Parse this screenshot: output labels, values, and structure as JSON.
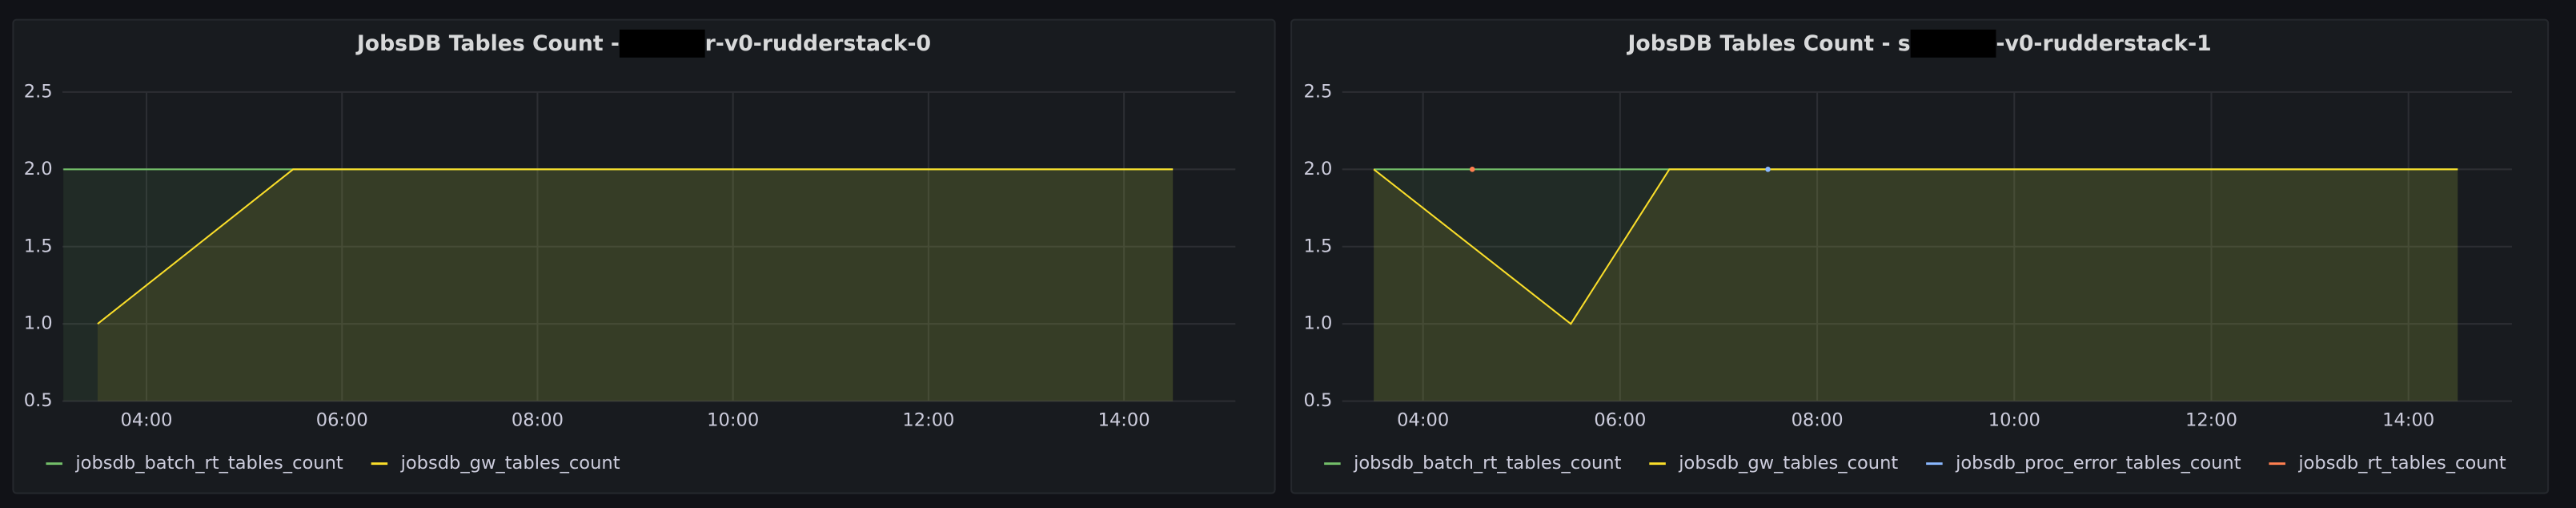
{
  "chart_data": [
    {
      "type": "line",
      "title": "JobsDB Tables Count - ",
      "title_suffix": "r-v0-rudderstack-0",
      "x": [
        3.15,
        3.5,
        4.5,
        5.5,
        6.5,
        7.5,
        8.5,
        9.5,
        10.5,
        11.5,
        12.5,
        13.5,
        14.5
      ],
      "xlim": [
        3.14,
        15.14
      ],
      "xticks": [
        {
          "value": 4,
          "label": "04:00"
        },
        {
          "value": 6,
          "label": "06:00"
        },
        {
          "value": 8,
          "label": "08:00"
        },
        {
          "value": 10,
          "label": "10:00"
        },
        {
          "value": 12,
          "label": "12:00"
        },
        {
          "value": 14,
          "label": "14:00"
        }
      ],
      "ylim": [
        0.5,
        2.5
      ],
      "yticks": [
        0.5,
        {
          "value": 1,
          "label": "1.0"
        },
        1.5,
        {
          "value": 2,
          "label": "2.0"
        },
        2.5
      ],
      "grid": true,
      "series": [
        {
          "name": "jobsdb_batch_rt_tables_count",
          "color": "#73bf69",
          "values": [
            2,
            2,
            2,
            2,
            2,
            2,
            2,
            2,
            2,
            2,
            2,
            2,
            2
          ]
        },
        {
          "name": "jobsdb_gw_tables_count",
          "color": "#fade2a",
          "values": [
            null,
            1,
            1.5,
            2,
            2,
            2,
            2,
            2,
            2,
            2,
            2,
            2,
            2
          ]
        }
      ]
    },
    {
      "type": "line",
      "title": "JobsDB Tables Count - s",
      "title_suffix": "-v0-rudderstack-1",
      "x": [
        3.5,
        4.5,
        5.5,
        6.5,
        7.5,
        8.5,
        9.5,
        10.5,
        11.5,
        12.5,
        13.5,
        14.5
      ],
      "xlim": [
        3.18,
        15.05
      ],
      "xticks": [
        {
          "value": 4,
          "label": "04:00"
        },
        {
          "value": 6,
          "label": "06:00"
        },
        {
          "value": 8,
          "label": "08:00"
        },
        {
          "value": 10,
          "label": "10:00"
        },
        {
          "value": 12,
          "label": "12:00"
        },
        {
          "value": 14,
          "label": "14:00"
        }
      ],
      "ylim": [
        0.5,
        2.5
      ],
      "yticks": [
        0.5,
        {
          "value": 1,
          "label": "1.0"
        },
        1.5,
        {
          "value": 2,
          "label": "2.0"
        },
        2.5
      ],
      "grid": true,
      "series": [
        {
          "name": "jobsdb_batch_rt_tables_count",
          "color": "#73bf69",
          "values": [
            2,
            2,
            2,
            2,
            2,
            2,
            2,
            2,
            2,
            2,
            2,
            2
          ]
        },
        {
          "name": "jobsdb_gw_tables_count",
          "color": "#fade2a",
          "values": [
            2,
            1.5,
            1,
            2,
            2,
            2,
            2,
            2,
            2,
            2,
            2,
            2
          ]
        },
        {
          "name": "jobsdb_proc_error_tables_count",
          "color": "#8ab8ff",
          "values": [
            null,
            null,
            null,
            null,
            2,
            null,
            null,
            null,
            null,
            null,
            null,
            null
          ]
        },
        {
          "name": "jobsdb_rt_tables_count",
          "color": "#ff7f50",
          "values": [
            null,
            2,
            null,
            null,
            null,
            null,
            null,
            null,
            null,
            null,
            null,
            null
          ]
        }
      ]
    }
  ]
}
